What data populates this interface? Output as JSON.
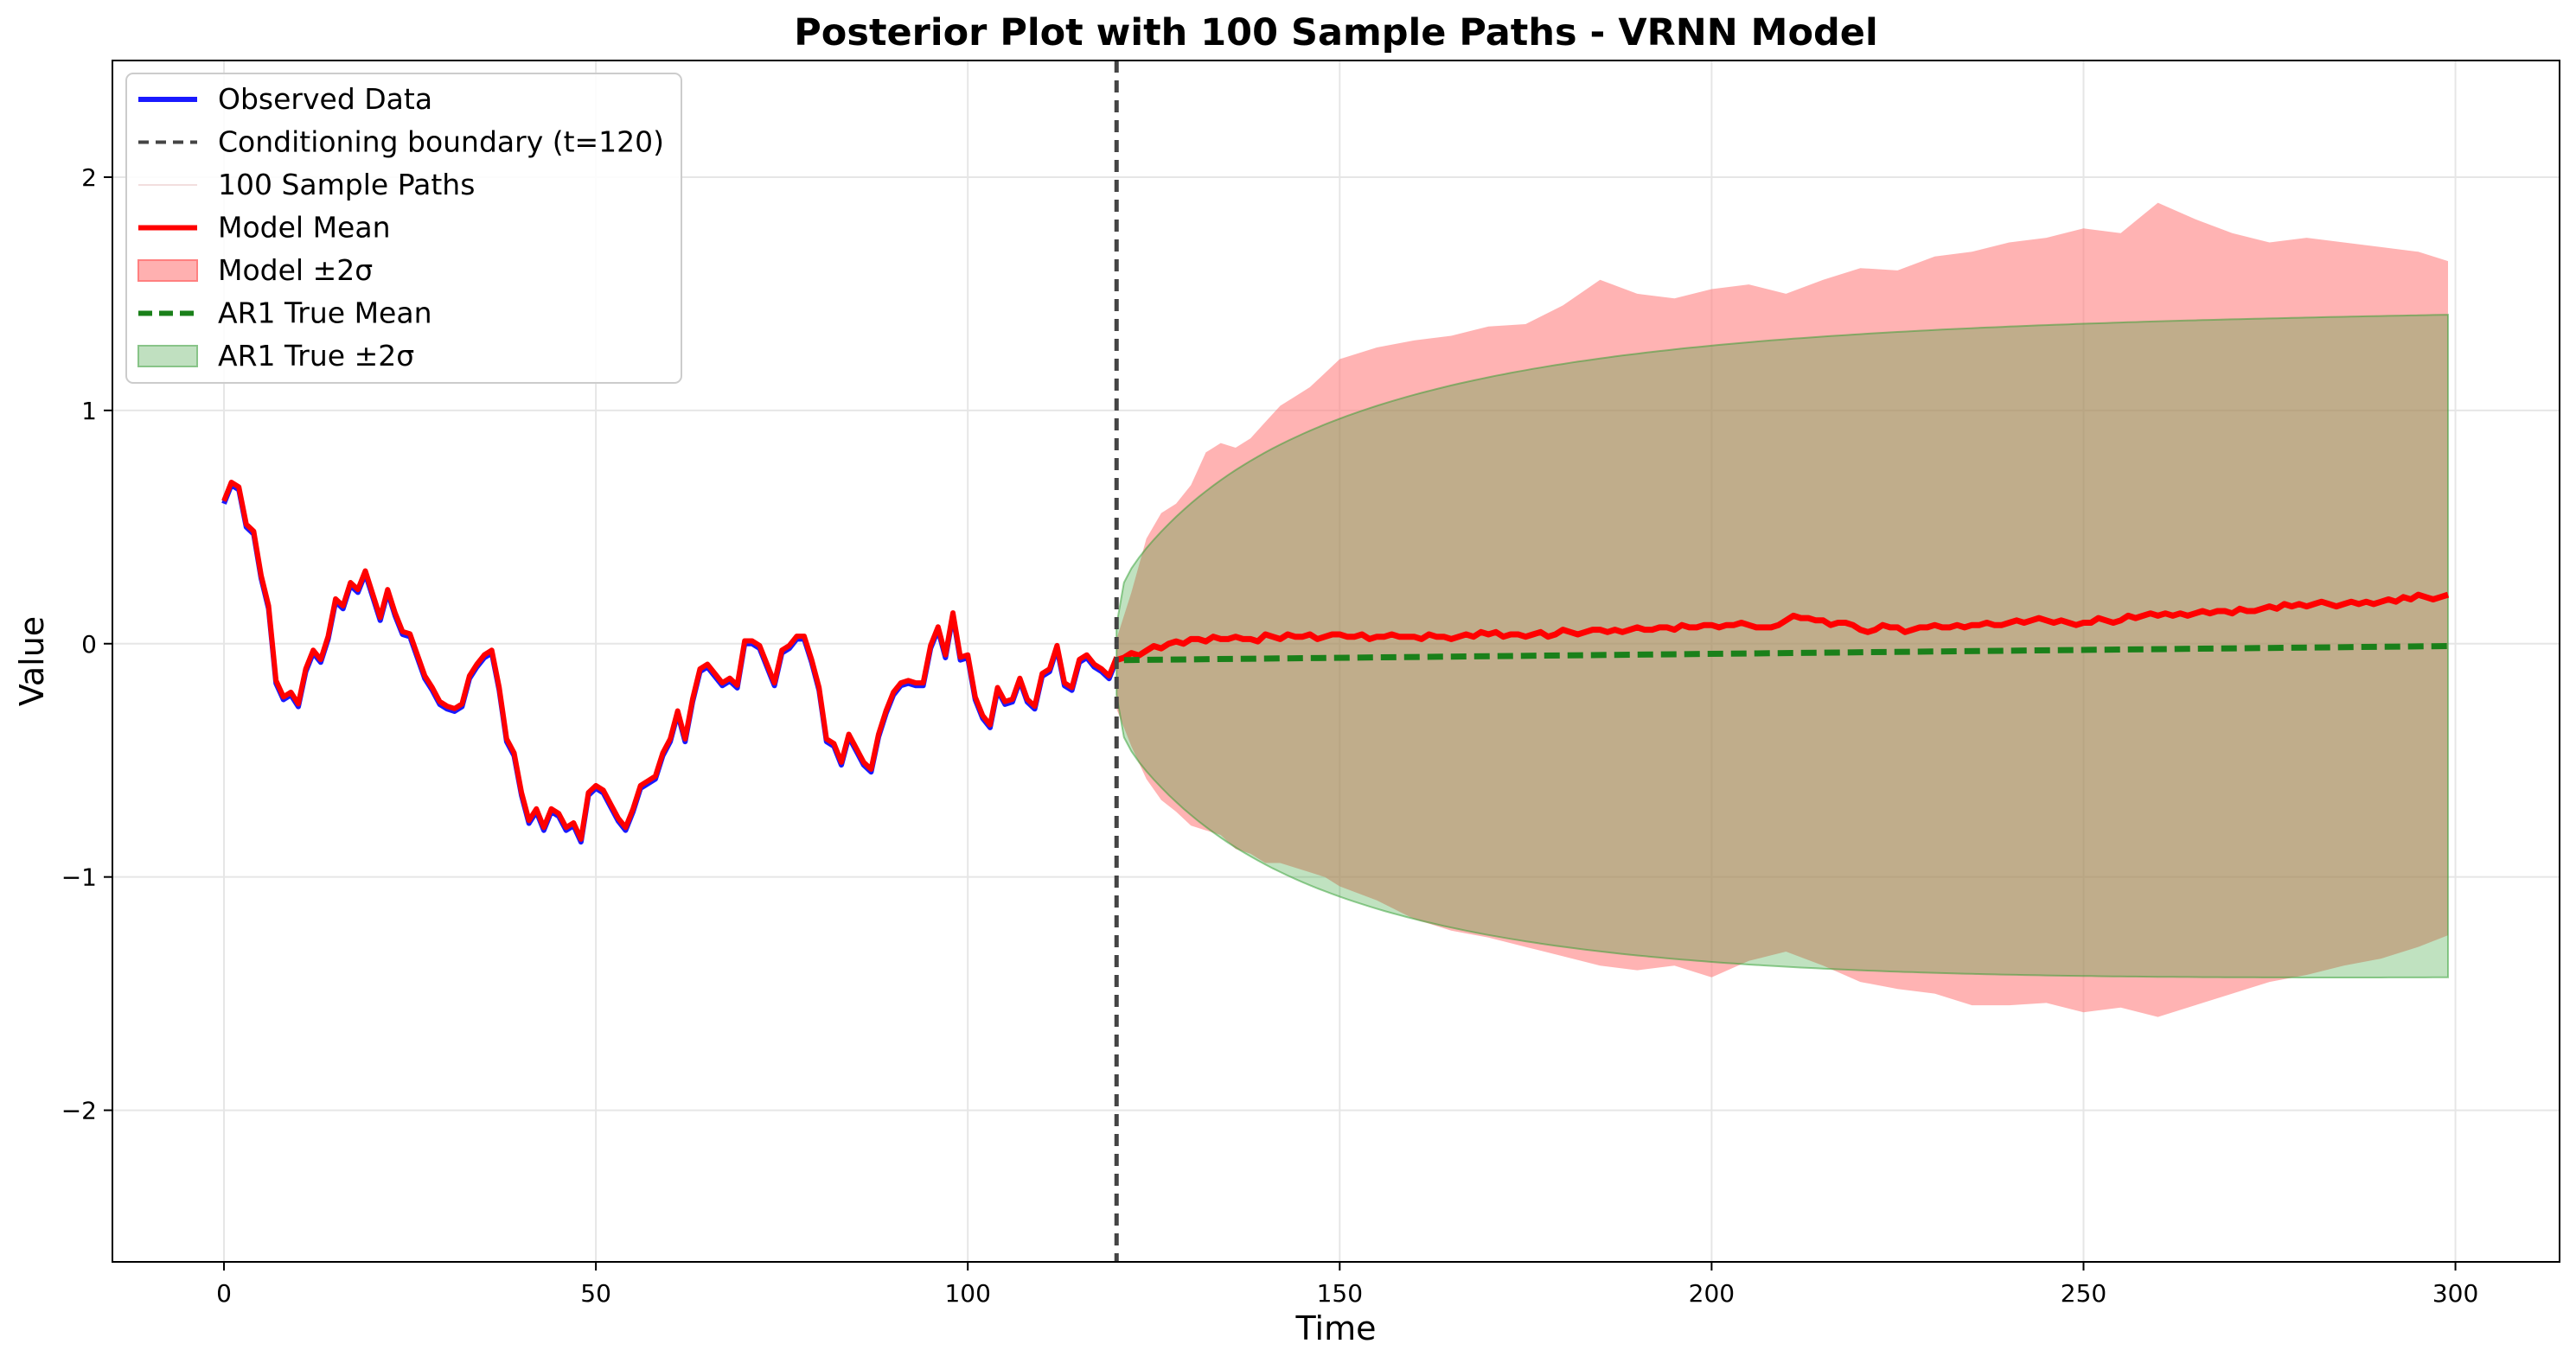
{
  "chart_data": {
    "type": "line",
    "title": "Posterior Plot with 100 Sample Paths - VRNN Model",
    "xlabel": "Time",
    "ylabel": "Value",
    "xlim": [
      -15,
      314
    ],
    "ylim": [
      -2.65,
      2.5
    ],
    "xticks": [
      0,
      50,
      100,
      150,
      200,
      250,
      300
    ],
    "yticks": [
      -2,
      -1,
      0,
      1,
      2
    ],
    "xtick_labels": [
      "0",
      "50",
      "100",
      "150",
      "200",
      "250",
      "300"
    ],
    "ytick_labels": [
      "−2",
      "−1",
      "0",
      "1",
      "2"
    ],
    "grid": true,
    "legend_position": "top-left",
    "conditioning_boundary": 120,
    "forecast_end": 299,
    "observed": {
      "x": [
        0,
        1,
        2,
        3,
        4,
        5,
        6,
        7,
        8,
        9,
        10,
        11,
        12,
        13,
        14,
        15,
        16,
        17,
        18,
        19,
        20,
        21,
        22,
        23,
        24,
        25,
        26,
        27,
        28,
        29,
        30,
        31,
        32,
        33,
        34,
        35,
        36,
        37,
        38,
        39,
        40,
        41,
        42,
        43,
        44,
        45,
        46,
        47,
        48,
        49,
        50,
        51,
        52,
        53,
        54,
        55,
        56,
        57,
        58,
        59,
        60,
        61,
        62,
        63,
        64,
        65,
        66,
        67,
        68,
        69,
        70,
        71,
        72,
        73,
        74,
        75,
        76,
        77,
        78,
        79,
        80,
        81,
        82,
        83,
        84,
        85,
        86,
        87,
        88,
        89,
        90,
        91,
        92,
        93,
        94,
        95,
        96,
        97,
        98,
        99,
        100,
        101,
        102,
        103,
        104,
        105,
        106,
        107,
        108,
        109,
        110,
        111,
        112,
        113,
        114,
        115,
        116,
        117,
        118,
        119,
        120
      ],
      "y": [
        0.6,
        0.68,
        0.66,
        0.5,
        0.47,
        0.28,
        0.15,
        -0.17,
        -0.24,
        -0.22,
        -0.27,
        -0.12,
        -0.04,
        -0.08,
        0.02,
        0.18,
        0.15,
        0.25,
        0.22,
        0.3,
        0.2,
        0.1,
        0.22,
        0.12,
        0.04,
        0.03,
        -0.06,
        -0.15,
        -0.2,
        -0.26,
        -0.28,
        -0.29,
        -0.27,
        -0.15,
        -0.1,
        -0.06,
        -0.04,
        -0.2,
        -0.42,
        -0.48,
        -0.65,
        -0.77,
        -0.72,
        -0.8,
        -0.72,
        -0.74,
        -0.8,
        -0.78,
        -0.85,
        -0.65,
        -0.62,
        -0.64,
        -0.7,
        -0.76,
        -0.8,
        -0.72,
        -0.62,
        -0.6,
        -0.58,
        -0.48,
        -0.42,
        -0.3,
        -0.42,
        -0.25,
        -0.12,
        -0.1,
        -0.14,
        -0.18,
        -0.16,
        -0.19,
        0.0,
        0.0,
        -0.02,
        -0.1,
        -0.18,
        -0.04,
        -0.02,
        0.02,
        0.02,
        -0.08,
        -0.2,
        -0.42,
        -0.44,
        -0.52,
        -0.4,
        -0.46,
        -0.52,
        -0.55,
        -0.4,
        -0.3,
        -0.22,
        -0.18,
        -0.17,
        -0.18,
        -0.18,
        -0.02,
        0.06,
        -0.06,
        0.12,
        -0.07,
        -0.06,
        -0.24,
        -0.32,
        -0.36,
        -0.2,
        -0.26,
        -0.25,
        -0.16,
        -0.25,
        -0.28,
        -0.14,
        -0.12,
        -0.02,
        -0.18,
        -0.2,
        -0.08,
        -0.06,
        -0.1,
        -0.12,
        -0.15,
        -0.07
      ]
    },
    "model_mean": {
      "x_start": 120,
      "step": 1,
      "y": [
        -0.07,
        -0.06,
        -0.04,
        -0.05,
        -0.03,
        -0.01,
        -0.02,
        0.0,
        0.01,
        0.0,
        0.02,
        0.02,
        0.01,
        0.03,
        0.02,
        0.02,
        0.03,
        0.02,
        0.02,
        0.01,
        0.04,
        0.03,
        0.02,
        0.04,
        0.03,
        0.03,
        0.04,
        0.02,
        0.03,
        0.04,
        0.04,
        0.03,
        0.03,
        0.04,
        0.02,
        0.03,
        0.03,
        0.04,
        0.03,
        0.03,
        0.03,
        0.02,
        0.04,
        0.03,
        0.03,
        0.02,
        0.03,
        0.04,
        0.03,
        0.05,
        0.04,
        0.05,
        0.03,
        0.04,
        0.04,
        0.03,
        0.04,
        0.05,
        0.03,
        0.04,
        0.06,
        0.05,
        0.04,
        0.05,
        0.06,
        0.06,
        0.05,
        0.06,
        0.05,
        0.06,
        0.07,
        0.06,
        0.06,
        0.07,
        0.07,
        0.06,
        0.08,
        0.07,
        0.07,
        0.08,
        0.08,
        0.07,
        0.08,
        0.08,
        0.09,
        0.08,
        0.07,
        0.07,
        0.07,
        0.08,
        0.1,
        0.12,
        0.11,
        0.11,
        0.1,
        0.1,
        0.08,
        0.09,
        0.09,
        0.08,
        0.06,
        0.05,
        0.06,
        0.08,
        0.07,
        0.07,
        0.05,
        0.06,
        0.07,
        0.07,
        0.08,
        0.07,
        0.07,
        0.08,
        0.07,
        0.08,
        0.08,
        0.09,
        0.08,
        0.08,
        0.09,
        0.1,
        0.09,
        0.1,
        0.11,
        0.1,
        0.09,
        0.1,
        0.09,
        0.08,
        0.09,
        0.09,
        0.11,
        0.1,
        0.09,
        0.1,
        0.12,
        0.11,
        0.12,
        0.13,
        0.12,
        0.13,
        0.12,
        0.13,
        0.12,
        0.13,
        0.14,
        0.13,
        0.14,
        0.14,
        0.13,
        0.15,
        0.14,
        0.14,
        0.15,
        0.16,
        0.15,
        0.17,
        0.16,
        0.17,
        0.16,
        0.17,
        0.18,
        0.17,
        0.16,
        0.17,
        0.18,
        0.17,
        0.18,
        0.17,
        0.18,
        0.19,
        0.18,
        0.2,
        0.19,
        0.21,
        0.2,
        0.19,
        0.2,
        0.21
      ]
    },
    "model_band": {
      "x": [
        120,
        122,
        124,
        126,
        128,
        130,
        132,
        134,
        136,
        138,
        140,
        142,
        144,
        146,
        148,
        150,
        155,
        160,
        165,
        170,
        175,
        180,
        185,
        190,
        195,
        200,
        205,
        210,
        215,
        220,
        225,
        230,
        235,
        240,
        245,
        250,
        255,
        260,
        265,
        270,
        275,
        280,
        285,
        290,
        295,
        299
      ],
      "upper": [
        0.02,
        0.22,
        0.45,
        0.56,
        0.6,
        0.68,
        0.82,
        0.86,
        0.84,
        0.88,
        0.95,
        1.02,
        1.06,
        1.1,
        1.16,
        1.22,
        1.27,
        1.3,
        1.32,
        1.36,
        1.37,
        1.45,
        1.56,
        1.5,
        1.48,
        1.52,
        1.54,
        1.5,
        1.56,
        1.61,
        1.6,
        1.66,
        1.68,
        1.72,
        1.74,
        1.78,
        1.76,
        1.89,
        1.82,
        1.76,
        1.72,
        1.74,
        1.72,
        1.7,
        1.68,
        1.64
      ],
      "lower": [
        -0.28,
        -0.44,
        -0.58,
        -0.67,
        -0.72,
        -0.78,
        -0.8,
        -0.82,
        -0.88,
        -0.9,
        -0.94,
        -0.94,
        -0.96,
        -0.98,
        -1.0,
        -1.04,
        -1.1,
        -1.18,
        -1.23,
        -1.26,
        -1.3,
        -1.34,
        -1.38,
        -1.4,
        -1.38,
        -1.43,
        -1.36,
        -1.32,
        -1.38,
        -1.45,
        -1.48,
        -1.5,
        -1.55,
        -1.55,
        -1.54,
        -1.58,
        -1.56,
        -1.6,
        -1.55,
        -1.5,
        -1.45,
        -1.42,
        -1.38,
        -1.35,
        -1.3,
        -1.25
      ]
    },
    "ar1_mean": {
      "x": [
        121,
        299
      ],
      "y": [
        -0.07,
        -0.01
      ]
    },
    "ar1_band": {
      "x_start": 120,
      "x_end": 299,
      "mean_start": -0.07,
      "mean_end": -0.01,
      "sigma_init": 0.15,
      "sigma_limit": 1.43,
      "decay": 0.012
    },
    "legend": [
      {
        "label": "Observed Data",
        "kind": "line",
        "color": "#1a1aff",
        "width": 6,
        "dash": ""
      },
      {
        "label": "Conditioning boundary (t=120)",
        "kind": "line",
        "color": "#444444",
        "width": 4,
        "dash": "12,8"
      },
      {
        "label": "100 Sample Paths",
        "kind": "line",
        "color": "#f2dede",
        "width": 2,
        "dash": ""
      },
      {
        "label": "Model Mean",
        "kind": "line",
        "color": "#ff0000",
        "width": 6,
        "dash": ""
      },
      {
        "label": "Model ±2σ",
        "kind": "patch",
        "color": "#ffb0b0",
        "edge": "#ff8080"
      },
      {
        "label": "AR1 True Mean",
        "kind": "line",
        "color": "#1a801a",
        "width": 6,
        "dash": "16,8"
      },
      {
        "label": "AR1 True ±2σ",
        "kind": "patch",
        "color": "#c0e0c0",
        "edge": "#88c488"
      }
    ],
    "colors": {
      "observed": "#1a1aff",
      "model_mean": "#ff0000",
      "model_band": "#ff8080",
      "ar1_mean": "#1a801a",
      "ar1_band": "#2e9e2e",
      "boundary": "#444444",
      "grid": "#e6e6e6"
    }
  }
}
